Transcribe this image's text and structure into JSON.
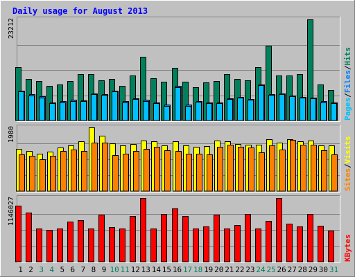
{
  "title": "Daily usage for August 2013",
  "colors": {
    "background": "#c0c0c0",
    "title": "#0000ff",
    "hits": "#00805c",
    "files": "#0080ff",
    "pages": "#00c0ff",
    "visits": "#ffff00",
    "sites": "#ff8000",
    "kbytes": "#ff0000",
    "weekend_label": "#00805c",
    "weekday_label": "#000000"
  },
  "chart_data": [
    {
      "type": "bar",
      "panel": "hits-files-pages",
      "ymax_label": "23212",
      "ylim": [
        0,
        23212
      ],
      "legend": [
        {
          "label": "Pages",
          "color": "#00c0ff"
        },
        {
          "label": "/",
          "color": "#000000"
        },
        {
          "label": "Files",
          "color": "#0080ff"
        },
        {
          "label": "/",
          "color": "#000000"
        },
        {
          "label": "Hits",
          "color": "#00805c"
        }
      ],
      "categories": [
        "1",
        "2",
        "3",
        "4",
        "5",
        "6",
        "7",
        "8",
        "9",
        "10",
        "11",
        "12",
        "13",
        "14",
        "15",
        "16",
        "17",
        "18",
        "19",
        "20",
        "21",
        "22",
        "23",
        "24",
        "25",
        "26",
        "27",
        "28",
        "29",
        "30",
        "31"
      ],
      "series": [
        {
          "name": "Hits",
          "values": [
            12200,
            9600,
            9000,
            7900,
            8200,
            9000,
            10600,
            10600,
            9200,
            9500,
            8000,
            10400,
            14600,
            9700,
            8900,
            12100,
            8900,
            7600,
            8800,
            9100,
            10700,
            9500,
            9300,
            12200,
            17100,
            10400,
            10400,
            10600,
            23200,
            8300,
            7000
          ]
        },
        {
          "name": "Files",
          "values": [
            6900,
            6000,
            5500,
            4100,
            4400,
            4700,
            4600,
            6200,
            6100,
            6900,
            4400,
            5100,
            4700,
            4100,
            3600,
            7900,
            3600,
            4500,
            4100,
            4100,
            5100,
            5400,
            5000,
            8300,
            6100,
            6200,
            5700,
            5400,
            5300,
            4400,
            4100
          ]
        },
        {
          "name": "Pages",
          "values": [
            6600,
            5800,
            5300,
            3900,
            4200,
            4500,
            4400,
            6000,
            5900,
            6700,
            4200,
            4900,
            4500,
            3900,
            3400,
            7700,
            3400,
            4300,
            3900,
            3900,
            4900,
            5200,
            4800,
            8100,
            5900,
            6000,
            5500,
            5200,
            5100,
            4200,
            3900
          ]
        }
      ]
    },
    {
      "type": "bar",
      "panel": "visits-sites",
      "ymax_label": "1980",
      "ylim": [
        0,
        1980
      ],
      "legend": [
        {
          "label": "Sites",
          "color": "#ff8000"
        },
        {
          "label": "/",
          "color": "#000000"
        },
        {
          "label": "Visits",
          "color": "#ffff00"
        }
      ],
      "categories": [
        "1",
        "2",
        "3",
        "4",
        "5",
        "6",
        "7",
        "8",
        "9",
        "10",
        "11",
        "12",
        "13",
        "14",
        "15",
        "16",
        "17",
        "18",
        "19",
        "20",
        "21",
        "22",
        "23",
        "24",
        "25",
        "26",
        "27",
        "28",
        "29",
        "30",
        "31"
      ],
      "series": [
        {
          "name": "Visits",
          "values": [
            1320,
            1240,
            1160,
            1230,
            1360,
            1420,
            1560,
            1980,
            1720,
            1480,
            1410,
            1460,
            1580,
            1550,
            1410,
            1560,
            1420,
            1380,
            1400,
            1580,
            1560,
            1470,
            1450,
            1450,
            1620,
            1500,
            1610,
            1560,
            1570,
            1420,
            1420
          ]
        },
        {
          "name": "Sites",
          "values": [
            1150,
            1100,
            1000,
            1100,
            1250,
            1300,
            1250,
            1500,
            1500,
            1120,
            1170,
            1250,
            1320,
            1370,
            1280,
            1250,
            1170,
            1170,
            1150,
            1380,
            1450,
            1380,
            1350,
            1200,
            1420,
            1300,
            1600,
            1450,
            1450,
            1270,
            1150
          ]
        }
      ]
    },
    {
      "type": "bar",
      "panel": "kbytes",
      "ymax_label": "1146027",
      "ylim": [
        0,
        1146027
      ],
      "legend": [
        {
          "label": "KBytes",
          "color": "#ff0000"
        }
      ],
      "categories": [
        "1",
        "2",
        "3",
        "4",
        "5",
        "6",
        "7",
        "8",
        "9",
        "10",
        "11",
        "12",
        "13",
        "14",
        "15",
        "16",
        "17",
        "18",
        "19",
        "20",
        "21",
        "22",
        "23",
        "24",
        "25",
        "26",
        "27",
        "28",
        "29",
        "30",
        "31"
      ],
      "series": [
        {
          "name": "KBytes",
          "values": [
            1010000,
            880000,
            600000,
            570000,
            600000,
            720000,
            745000,
            600000,
            850000,
            620000,
            600000,
            820000,
            1146027,
            600000,
            860000,
            960000,
            820000,
            600000,
            640000,
            850000,
            600000,
            665000,
            855000,
            600000,
            740000,
            1146027,
            680000,
            630000,
            860000,
            650000,
            560000
          ]
        }
      ]
    }
  ],
  "x_labels": [
    {
      "text": "1",
      "weekend": false
    },
    {
      "text": "2",
      "weekend": false
    },
    {
      "text": "3",
      "weekend": true
    },
    {
      "text": "4",
      "weekend": true
    },
    {
      "text": "5",
      "weekend": false
    },
    {
      "text": "6",
      "weekend": false
    },
    {
      "text": "7",
      "weekend": false
    },
    {
      "text": "8",
      "weekend": false
    },
    {
      "text": "9",
      "weekend": false
    },
    {
      "text": "10",
      "weekend": true
    },
    {
      "text": "11",
      "weekend": true
    },
    {
      "text": "12",
      "weekend": false
    },
    {
      "text": "13",
      "weekend": false
    },
    {
      "text": "14",
      "weekend": false
    },
    {
      "text": "15",
      "weekend": false
    },
    {
      "text": "16",
      "weekend": false
    },
    {
      "text": "17",
      "weekend": true
    },
    {
      "text": "18",
      "weekend": true
    },
    {
      "text": "19",
      "weekend": false
    },
    {
      "text": "20",
      "weekend": false
    },
    {
      "text": "21",
      "weekend": false
    },
    {
      "text": "22",
      "weekend": false
    },
    {
      "text": "23",
      "weekend": false
    },
    {
      "text": "24",
      "weekend": true
    },
    {
      "text": "25",
      "weekend": true
    },
    {
      "text": "26",
      "weekend": false
    },
    {
      "text": "27",
      "weekend": false
    },
    {
      "text": "28",
      "weekend": false
    },
    {
      "text": "29",
      "weekend": false
    },
    {
      "text": "30",
      "weekend": false
    },
    {
      "text": "31",
      "weekend": true
    }
  ]
}
